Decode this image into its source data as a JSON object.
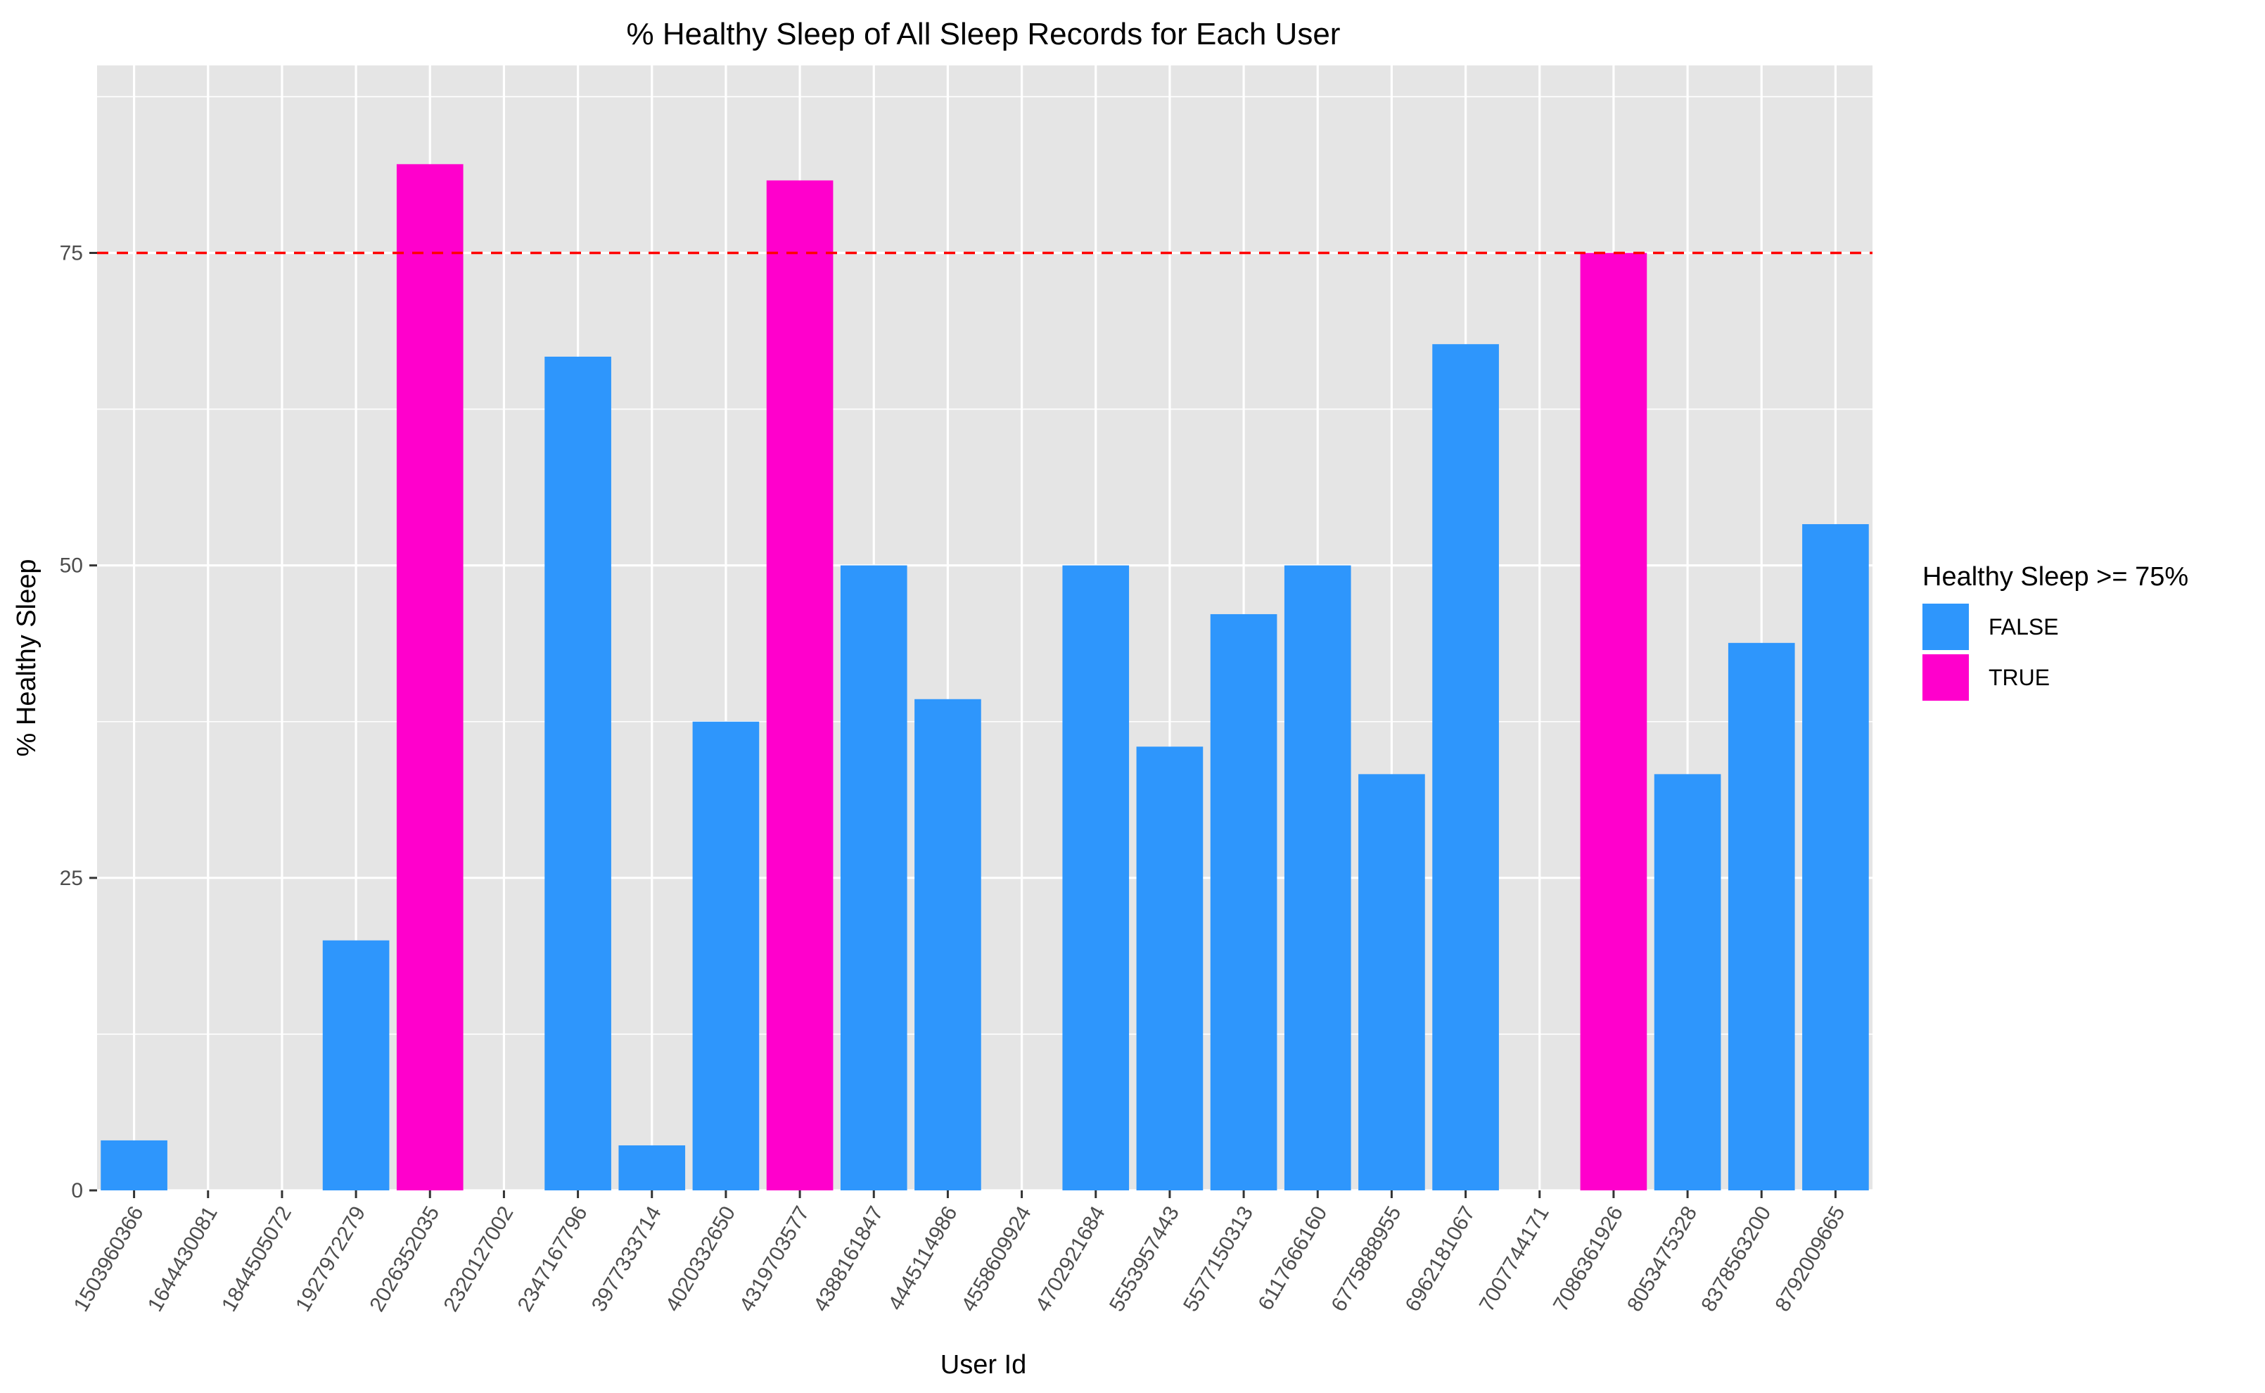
{
  "chart_data": {
    "type": "bar",
    "title": "% Healthy Sleep of All Sleep Records for Each User",
    "xlabel": "User Id",
    "ylabel": "% Healthy Sleep",
    "ylim": [
      0,
      90
    ],
    "yticks": [
      0,
      25,
      50,
      75
    ],
    "grid": true,
    "reference_line": {
      "y": 75,
      "style": "dashed",
      "color": "#ff0000"
    },
    "categories": [
      "1503960366",
      "1644430081",
      "1844505072",
      "1927972279",
      "2026352035",
      "2320127002",
      "2347167796",
      "3977333714",
      "4020332650",
      "4319703577",
      "4388161847",
      "4445114986",
      "4558609924",
      "4702921684",
      "5553957443",
      "5577150313",
      "6117666160",
      "6775888955",
      "6962181067",
      "7007744171",
      "7086361926",
      "8053475328",
      "8378563200",
      "8792009665"
    ],
    "values": [
      4,
      0,
      0,
      20,
      82.1,
      0,
      66.7,
      3.6,
      37.5,
      80.8,
      50,
      39.3,
      0,
      50,
      35.5,
      46.1,
      50,
      33.3,
      67.7,
      0,
      75,
      33.3,
      43.8,
      53.3
    ],
    "groups": [
      false,
      false,
      false,
      false,
      true,
      false,
      false,
      false,
      false,
      true,
      false,
      false,
      false,
      false,
      false,
      false,
      false,
      false,
      false,
      false,
      true,
      false,
      false,
      false
    ],
    "legend": {
      "title": "Healthy Sleep >= 75%",
      "placement": "right",
      "entries": [
        {
          "label": "FALSE",
          "color": "#2e96fc"
        },
        {
          "label": "TRUE",
          "color": "#ff00cc"
        }
      ]
    },
    "colors": {
      "panel": "#e5e5e5",
      "grid": "#ffffff",
      "text": "#000000",
      "tick": "#4d4d4d"
    }
  }
}
